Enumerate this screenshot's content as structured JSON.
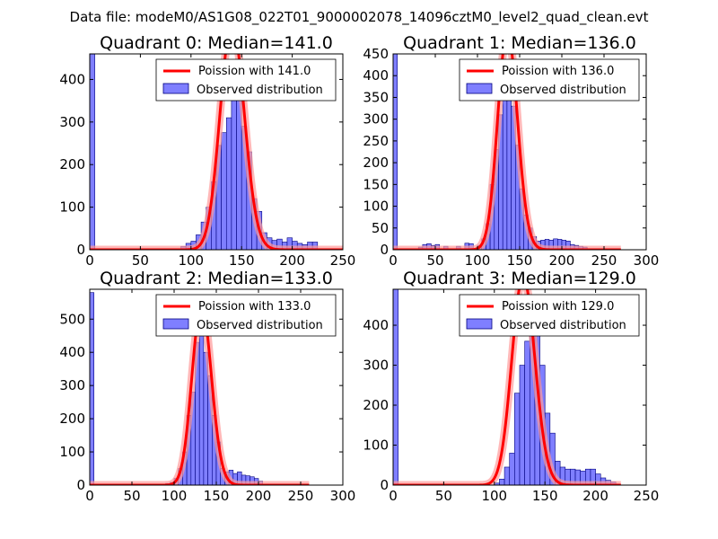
{
  "suptitle": "Data file: modeM0/AS1G08_022T01_9000002078_14096cztM0_level2_quad_clean.evt",
  "colors": {
    "hist_fill": "#7f7fff",
    "hist_edge": "#00007f",
    "poisson": "#ff0000",
    "poisson_glow": "#ff9a9a"
  },
  "chart_data": [
    {
      "type": "histogram",
      "title": "Quadrant 0: Median=141.0",
      "median": 141.0,
      "xlim": [
        0,
        250
      ],
      "ylim": [
        0,
        460
      ],
      "xticks": [
        0,
        50,
        100,
        150,
        200,
        250
      ],
      "xtick_labels": [
        "0",
        "50",
        "100",
        "150",
        "200",
        "250"
      ],
      "yticks": [
        0,
        100,
        200,
        300,
        400
      ],
      "ytick_labels": [
        "0",
        "100",
        "200",
        "300",
        "400"
      ],
      "legend": {
        "line_label": "Poission with 141.0",
        "hist_label": "Observed distribution",
        "placement": "top-right"
      },
      "bin_width": 5,
      "bins": [
        [
          0,
          460
        ],
        [
          90,
          8
        ],
        [
          95,
          15
        ],
        [
          100,
          20
        ],
        [
          105,
          35
        ],
        [
          110,
          65
        ],
        [
          115,
          100
        ],
        [
          120,
          160
        ],
        [
          125,
          245
        ],
        [
          130,
          275
        ],
        [
          135,
          310
        ],
        [
          140,
          420
        ],
        [
          145,
          430
        ],
        [
          150,
          290
        ],
        [
          155,
          230
        ],
        [
          160,
          120
        ],
        [
          165,
          90
        ],
        [
          170,
          40
        ],
        [
          175,
          28
        ],
        [
          180,
          22
        ],
        [
          185,
          25
        ],
        [
          190,
          18
        ],
        [
          195,
          28
        ],
        [
          200,
          20
        ],
        [
          205,
          15
        ],
        [
          210,
          12
        ],
        [
          215,
          18
        ],
        [
          220,
          18
        ]
      ],
      "curve_range": [
        0,
        250
      ]
    },
    {
      "type": "histogram",
      "title": "Quadrant 1: Median=136.0",
      "median": 136.0,
      "xlim": [
        0,
        300
      ],
      "ylim": [
        0,
        450
      ],
      "xticks": [
        0,
        50,
        100,
        150,
        200,
        250,
        300
      ],
      "xtick_labels": [
        "0",
        "50",
        "100",
        "150",
        "200",
        "250",
        "300"
      ],
      "yticks": [
        0,
        50,
        100,
        150,
        200,
        250,
        300,
        350,
        400,
        450
      ],
      "ytick_labels": [
        "0",
        "50",
        "100",
        "150",
        "200",
        "250",
        "300",
        "350",
        "400",
        "450"
      ],
      "legend": {
        "line_label": "Poission with 136.0",
        "hist_label": "Observed distribution",
        "placement": "top-right"
      },
      "bin_width": 5,
      "bins": [
        [
          0,
          450
        ],
        [
          30,
          6
        ],
        [
          35,
          12
        ],
        [
          40,
          14
        ],
        [
          45,
          10
        ],
        [
          50,
          12
        ],
        [
          60,
          8
        ],
        [
          75,
          8
        ],
        [
          85,
          15
        ],
        [
          90,
          14
        ],
        [
          100,
          10
        ],
        [
          105,
          25
        ],
        [
          110,
          60
        ],
        [
          115,
          150
        ],
        [
          120,
          230
        ],
        [
          125,
          310
        ],
        [
          130,
          420
        ],
        [
          135,
          430
        ],
        [
          140,
          330
        ],
        [
          145,
          240
        ],
        [
          150,
          140
        ],
        [
          155,
          80
        ],
        [
          160,
          50
        ],
        [
          165,
          30
        ],
        [
          170,
          20
        ],
        [
          175,
          22
        ],
        [
          180,
          24
        ],
        [
          185,
          22
        ],
        [
          190,
          25
        ],
        [
          195,
          24
        ],
        [
          200,
          22
        ],
        [
          205,
          20
        ],
        [
          210,
          12
        ],
        [
          215,
          10
        ],
        [
          220,
          8
        ],
        [
          225,
          6
        ]
      ],
      "curve_range": [
        0,
        270
      ]
    },
    {
      "type": "histogram",
      "title": "Quadrant 2: Median=133.0",
      "median": 133.0,
      "xlim": [
        0,
        300
      ],
      "ylim": [
        0,
        590
      ],
      "xticks": [
        0,
        50,
        100,
        150,
        200,
        250,
        300
      ],
      "xtick_labels": [
        "0",
        "50",
        "100",
        "150",
        "200",
        "250",
        "300"
      ],
      "yticks": [
        0,
        100,
        200,
        300,
        400,
        500
      ],
      "ytick_labels": [
        "0",
        "100",
        "200",
        "300",
        "400",
        "500"
      ],
      "legend": {
        "line_label": "Poission with 133.0",
        "hist_label": "Observed distribution",
        "placement": "top-right"
      },
      "bin_width": 5,
      "bins": [
        [
          0,
          580
        ],
        [
          90,
          5
        ],
        [
          95,
          8
        ],
        [
          100,
          20
        ],
        [
          105,
          50
        ],
        [
          110,
          100
        ],
        [
          115,
          210
        ],
        [
          120,
          280
        ],
        [
          125,
          430
        ],
        [
          130,
          520
        ],
        [
          135,
          400
        ],
        [
          140,
          330
        ],
        [
          145,
          210
        ],
        [
          150,
          130
        ],
        [
          155,
          50
        ],
        [
          160,
          40
        ],
        [
          165,
          45
        ],
        [
          170,
          35
        ],
        [
          175,
          40
        ],
        [
          180,
          30
        ],
        [
          185,
          28
        ],
        [
          190,
          25
        ],
        [
          195,
          20
        ],
        [
          200,
          12
        ]
      ],
      "curve_range": [
        0,
        260
      ]
    },
    {
      "type": "histogram",
      "title": "Quadrant 3: Median=129.0",
      "median": 129.0,
      "xlim": [
        0,
        250
      ],
      "ylim": [
        0,
        490
      ],
      "xticks": [
        0,
        50,
        100,
        150,
        200,
        250
      ],
      "xtick_labels": [
        "0",
        "50",
        "100",
        "150",
        "200",
        "250"
      ],
      "yticks": [
        0,
        100,
        200,
        300,
        400
      ],
      "ytick_labels": [
        "0",
        "100",
        "200",
        "300",
        "400"
      ],
      "legend": {
        "line_label": "Poission with 129.0",
        "hist_label": "Observed distribution",
        "placement": "top-right"
      },
      "bin_width": 5,
      "bins": [
        [
          0,
          490
        ],
        [
          100,
          5
        ],
        [
          105,
          15
        ],
        [
          110,
          45
        ],
        [
          115,
          80
        ],
        [
          120,
          230
        ],
        [
          125,
          300
        ],
        [
          130,
          360
        ],
        [
          135,
          420
        ],
        [
          140,
          390
        ],
        [
          145,
          300
        ],
        [
          150,
          180
        ],
        [
          155,
          130
        ],
        [
          160,
          60
        ],
        [
          165,
          45
        ],
        [
          170,
          40
        ],
        [
          175,
          40
        ],
        [
          180,
          38
        ],
        [
          185,
          35
        ],
        [
          190,
          40
        ],
        [
          195,
          40
        ],
        [
          200,
          28
        ],
        [
          205,
          18
        ],
        [
          210,
          12
        ],
        [
          215,
          8
        ]
      ],
      "curve_range": [
        0,
        225
      ]
    }
  ]
}
